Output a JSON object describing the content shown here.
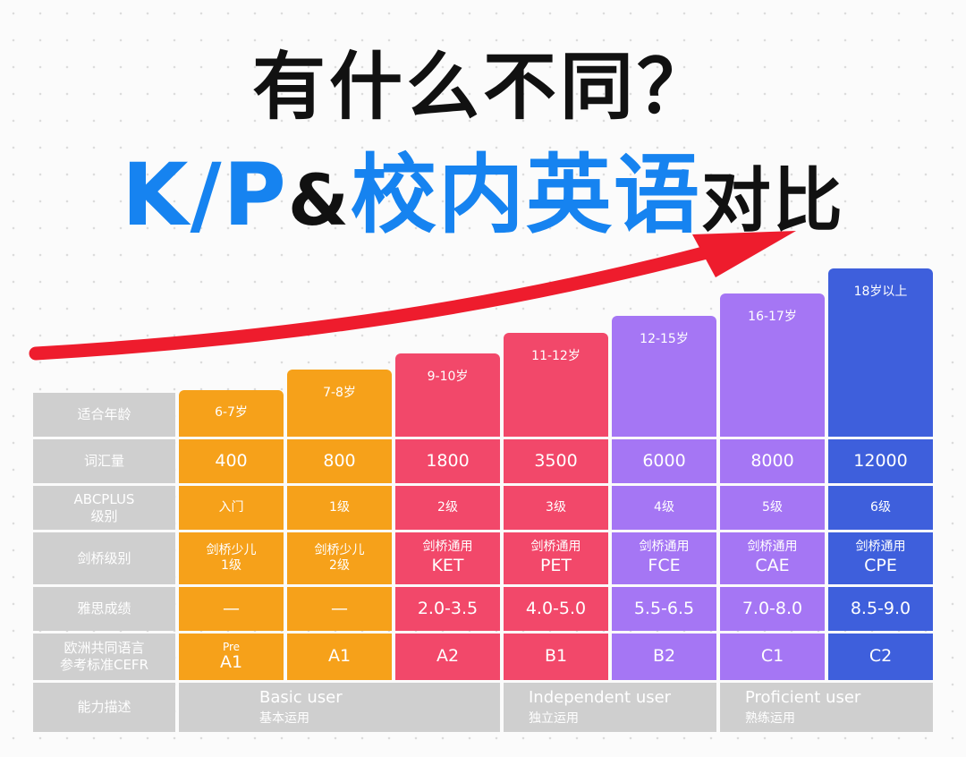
{
  "title": {
    "line1": "有什么不同？",
    "line2_part1": "K/P",
    "line2_part2": "&",
    "line2_part3": "校内英语",
    "line2_part4": "对比"
  },
  "row_labels": {
    "age": "适合年龄",
    "vocab": "词汇量",
    "abc": "ABCPLUS\n级别",
    "cambridge": "剑桥级别",
    "ielts": "雅思成绩",
    "cefr": "欧洲共同语言\n参考标准CEFR",
    "ability": "能力描述"
  },
  "columns": [
    {
      "age": "6-7岁",
      "vocab": "400",
      "abc": "入门",
      "camb1": "剑桥少儿",
      "camb2": "1级",
      "ielts": "—",
      "cefr_pre": "Pre",
      "cefr": "A1",
      "color": "#f6a11a"
    },
    {
      "age": "7-8岁",
      "vocab": "800",
      "abc": "1级",
      "camb1": "剑桥少儿",
      "camb2": "2级",
      "ielts": "—",
      "cefr_pre": "",
      "cefr": "A1",
      "color": "#f6a11a"
    },
    {
      "age": "9-10岁",
      "vocab": "1800",
      "abc": "2级",
      "camb1": "剑桥通用",
      "camb2": "KET",
      "ielts": "2.0-3.5",
      "cefr_pre": "",
      "cefr": "A2",
      "color": "#f2486a"
    },
    {
      "age": "11-12岁",
      "vocab": "3500",
      "abc": "3级",
      "camb1": "剑桥通用",
      "camb2": "PET",
      "ielts": "4.0-5.0",
      "cefr_pre": "",
      "cefr": "B1",
      "color": "#f2486a"
    },
    {
      "age": "12-15岁",
      "vocab": "6000",
      "abc": "4级",
      "camb1": "剑桥通用",
      "camb2": "FCE",
      "ielts": "5.5-6.5",
      "cefr_pre": "",
      "cefr": "B2",
      "color": "#a576f4"
    },
    {
      "age": "16-17岁",
      "vocab": "8000",
      "abc": "5级",
      "camb1": "剑桥通用",
      "camb2": "CAE",
      "ielts": "7.0-8.0",
      "cefr_pre": "",
      "cefr": "C1",
      "color": "#a576f4"
    },
    {
      "age": "18岁以上",
      "vocab": "12000",
      "abc": "6级",
      "camb1": "剑桥通用",
      "camb2": "CPE",
      "ielts": "8.5-9.0",
      "cefr_pre": "",
      "cefr": "C2",
      "color": "#3e5fdc"
    }
  ],
  "ability_groups": [
    {
      "en": "Basic user",
      "zh": "基本运用"
    },
    {
      "en": "Independent user",
      "zh": "独立运用"
    },
    {
      "en": "Proficient user",
      "zh": "熟练运用"
    }
  ],
  "colors": {
    "orange": "#f6a11a",
    "pink": "#f2486a",
    "purple": "#a576f4",
    "blue": "#3e5fdc",
    "label_gray": "#cfcfcf",
    "accent_blue": "#1683f0",
    "arrow_red": "#ee1c2d"
  }
}
